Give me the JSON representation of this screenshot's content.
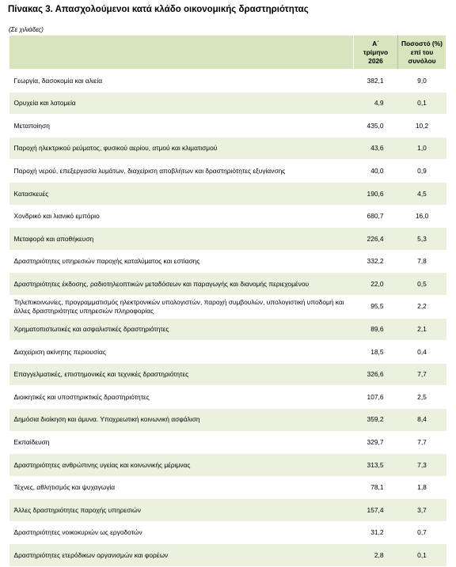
{
  "title": "Πίνακας 3. Απασχολούμενοι κατά κλάδο οικονομικής δραστηριότητας",
  "unit_note": "(Σε χιλιάδες)",
  "table": {
    "header": {
      "quarter": [
        "Α΄",
        "τρίμηνο",
        "2026"
      ],
      "share": [
        "Ποσοστό (%)",
        "επί του",
        "συνόλου"
      ]
    },
    "rows": [
      [
        "Γεωργία, δασοκομία και αλιεία",
        "382,1",
        "9,0"
      ],
      [
        "Ορυχεία και λατομεία",
        "4,9",
        "0,1"
      ],
      [
        "Μεταποίηση",
        "435,0",
        "10,2"
      ],
      [
        "Παροχή ηλεκτρικού ρεύματος, φυσικού αερίου, ατμού και κλιματισμού",
        "43,6",
        "1,0"
      ],
      [
        "Παροχή νερού, επεξεργασία λυμάτων, διαχείριση αποβλήτων και δραστηριότητες εξυγίανσης",
        "40,0",
        "0,9"
      ],
      [
        "Κατασκευές",
        "190,6",
        "4,5"
      ],
      [
        "Χονδρικό και λιανικό εμπόριο",
        "680,7",
        "16,0"
      ],
      [
        "Μεταφορά και αποθήκευση",
        "226,4",
        "5,3"
      ],
      [
        "Δραστηριότητες υπηρεσιών παροχής καταλύματος και εστίασης",
        "332,2",
        "7,8"
      ],
      [
        "Δραστηριότητες έκδοσης, ραδιοτηλεοπτικών μεταδόσεων και παραγωγής και διανομής περιεχομένου",
        "22,0",
        "0,5"
      ],
      [
        "Τηλεπικοινωνίες, προγραμματισμός ηλεκτρονικών υπολογιστών, παροχή συμβουλών, υπολογιστική υποδομή και άλλες δραστηριότητες υπηρεσιών πληροφορίας",
        "95,5",
        "2,2"
      ],
      [
        "Χρηματοπιστωτικές και ασφαλιστικές δραστηριότητες",
        "89,6",
        "2,1"
      ],
      [
        "Διαχείριση ακίνητης περιουσίας",
        "18,5",
        "0,4"
      ],
      [
        "Επαγγελματικές, επιστημονικές και τεχνικές δραστηριότητες",
        "326,6",
        "7,7"
      ],
      [
        "Διοικητικές και υποστηρικτικές δραστηριότητες",
        "107,6",
        "2,5"
      ],
      [
        "Δημόσια διοίκηση και άμυνα. Υποχρεωτική κοινωνική ασφάλιση",
        "359,2",
        "8,4"
      ],
      [
        "Εκπαίδευση",
        "329,7",
        "7,7"
      ],
      [
        "Δραστηριότητες ανθρώπινης υγείας και κοινωνικής μέριμνας",
        "313,5",
        "7,3"
      ],
      [
        "Τέχνες, αθλητισμός και ψυχαγωγία",
        "78,1",
        "1,8"
      ],
      [
        "Άλλες δραστηριότητες παροχής υπηρεσιών",
        "157,4",
        "3,7"
      ],
      [
        "Δραστηριότητες νοικοκυριών ως εργοδοτών",
        "31,2",
        "0,7"
      ],
      [
        "Δραστηριότητες ετερόδικων οργανισμών και φορέων",
        "2,8",
        "0,1"
      ]
    ]
  }
}
